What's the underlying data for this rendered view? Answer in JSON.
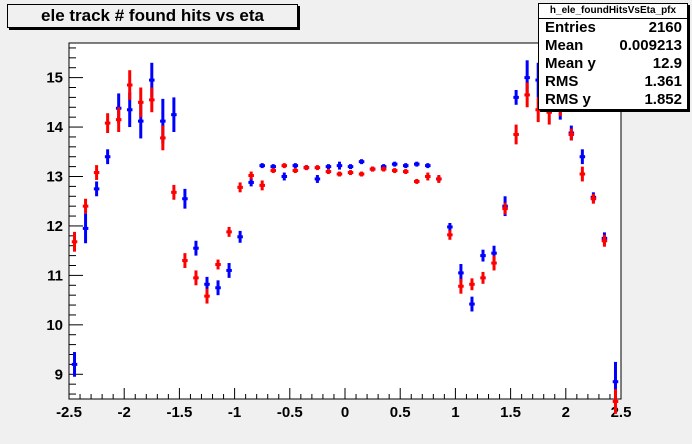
{
  "chart_data": {
    "type": "scatter",
    "title": "ele track # found hits vs eta",
    "xlim": [
      -2.5,
      2.5
    ],
    "ylim": [
      8.5,
      15.7
    ],
    "xticks": [
      -2.5,
      -2,
      -1.5,
      -1,
      -0.5,
      0,
      0.5,
      1,
      1.5,
      2,
      2.5
    ],
    "xtick_labels": [
      "-2.5",
      "-2",
      "-1.5",
      "-1",
      "-0.5",
      "0",
      "0.5",
      "1",
      "1.5",
      "2",
      "2.5"
    ],
    "yticks": [
      9,
      10,
      11,
      12,
      13,
      14,
      15
    ],
    "ytick_labels": [
      "9",
      "10",
      "11",
      "12",
      "13",
      "14",
      "15"
    ],
    "bin_half_width": 0.025,
    "series": [
      {
        "color": "#0000ff",
        "x": [
          -2.45,
          -2.35,
          -2.25,
          -2.15,
          -2.05,
          -1.95,
          -1.85,
          -1.75,
          -1.65,
          -1.55,
          -1.45,
          -1.35,
          -1.25,
          -1.15,
          -1.05,
          -0.95,
          -0.85,
          -0.75,
          -0.65,
          -0.55,
          -0.45,
          -0.35,
          -0.25,
          -0.15,
          -0.05,
          0.05,
          0.15,
          0.25,
          0.35,
          0.45,
          0.55,
          0.65,
          0.75,
          0.85,
          0.95,
          1.05,
          1.15,
          1.25,
          1.35,
          1.45,
          1.55,
          1.65,
          1.75,
          1.85,
          1.95,
          2.05,
          2.15,
          2.25,
          2.35,
          2.45
        ],
        "y": [
          9.2,
          11.95,
          12.75,
          13.4,
          14.38,
          14.35,
          14.12,
          14.95,
          14.12,
          14.25,
          12.55,
          11.55,
          10.82,
          10.75,
          11.1,
          11.78,
          12.88,
          13.22,
          13.2,
          13.0,
          13.22,
          13.18,
          12.95,
          13.2,
          13.22,
          13.2,
          13.3,
          13.15,
          13.2,
          13.25,
          13.22,
          13.25,
          13.22,
          12.95,
          11.98,
          11.05,
          10.42,
          11.4,
          11.45,
          12.4,
          14.6,
          15.0,
          14.95,
          14.95,
          14.35,
          13.88,
          13.4,
          12.58,
          11.75,
          8.85
        ],
        "yerr": [
          0.25,
          0.3,
          0.15,
          0.15,
          0.3,
          0.35,
          0.35,
          0.35,
          0.45,
          0.35,
          0.2,
          0.15,
          0.15,
          0.15,
          0.15,
          0.12,
          0.08,
          0.05,
          0.05,
          0.08,
          0.05,
          0.05,
          0.08,
          0.05,
          0.08,
          0.05,
          0.05,
          0.05,
          0.05,
          0.05,
          0.05,
          0.05,
          0.05,
          0.06,
          0.08,
          0.18,
          0.15,
          0.12,
          0.15,
          0.2,
          0.15,
          0.35,
          0.35,
          0.3,
          0.2,
          0.15,
          0.15,
          0.1,
          0.12,
          0.4
        ]
      },
      {
        "color": "#ff0000",
        "x": [
          -2.45,
          -2.35,
          -2.25,
          -2.15,
          -2.05,
          -1.95,
          -1.85,
          -1.75,
          -1.65,
          -1.55,
          -1.45,
          -1.35,
          -1.25,
          -1.15,
          -1.05,
          -0.95,
          -0.85,
          -0.75,
          -0.65,
          -0.55,
          -0.45,
          -0.35,
          -0.25,
          -0.15,
          -0.05,
          0.05,
          0.15,
          0.25,
          0.35,
          0.45,
          0.55,
          0.65,
          0.75,
          0.85,
          0.95,
          1.05,
          1.15,
          1.25,
          1.35,
          1.45,
          1.55,
          1.65,
          1.75,
          1.85,
          1.95,
          2.05,
          2.15,
          2.25,
          2.35,
          2.45
        ],
        "y": [
          11.68,
          12.4,
          13.08,
          14.08,
          14.15,
          14.85,
          14.5,
          14.55,
          13.78,
          12.68,
          11.3,
          10.95,
          10.58,
          11.22,
          11.88,
          12.78,
          13.02,
          12.82,
          13.12,
          13.22,
          13.12,
          13.18,
          13.18,
          13.1,
          13.05,
          13.08,
          13.05,
          13.15,
          13.15,
          13.12,
          13.1,
          12.9,
          13.0,
          12.95,
          11.82,
          10.78,
          10.82,
          10.95,
          11.25,
          12.35,
          13.85,
          14.65,
          14.35,
          14.3,
          14.42,
          13.85,
          13.05,
          12.55,
          11.7,
          8.45
        ],
        "yerr": [
          0.2,
          0.15,
          0.15,
          0.2,
          0.25,
          0.3,
          0.3,
          0.25,
          0.25,
          0.15,
          0.15,
          0.15,
          0.15,
          0.1,
          0.1,
          0.1,
          0.08,
          0.1,
          0.05,
          0.05,
          0.05,
          0.05,
          0.05,
          0.05,
          0.05,
          0.05,
          0.05,
          0.05,
          0.05,
          0.05,
          0.05,
          0.05,
          0.08,
          0.08,
          0.1,
          0.15,
          0.12,
          0.12,
          0.15,
          0.12,
          0.2,
          0.25,
          0.25,
          0.25,
          0.2,
          0.12,
          0.15,
          0.1,
          0.12,
          0.25
        ]
      }
    ]
  },
  "stats": {
    "name": "h_ele_foundHitsVsEta_pfx",
    "rows": [
      {
        "label": "Entries",
        "value": "2160"
      },
      {
        "label": "Mean",
        "value": "0.009213"
      },
      {
        "label": "Mean y",
        "value": "12.9"
      },
      {
        "label": "RMS",
        "value": "1.361"
      },
      {
        "label": "RMS y",
        "value": "1.852"
      }
    ]
  }
}
